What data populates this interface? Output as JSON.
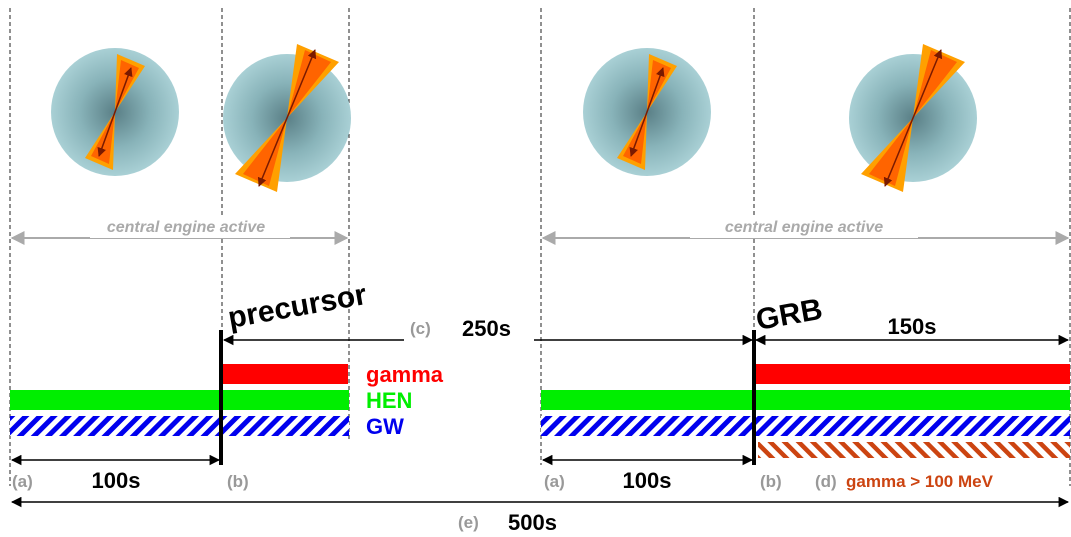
{
  "labels": {
    "engine_active_1": "central engine active",
    "engine_active_2": "central engine active",
    "precursor": "precursor",
    "grb": "GRB",
    "c_letter": "(c)",
    "c_duration": "250s",
    "grb_duration": "150s",
    "a1_letter": "(a)",
    "a1_duration": "100s",
    "b1_letter": "(b)",
    "a2_letter": "(a)",
    "a2_duration": "100s",
    "b2_letter": "(b)",
    "d_letter": "(d)",
    "d_text": "gamma > 100 MeV",
    "e_letter": "(e)",
    "e_duration": "500s"
  },
  "legend": {
    "gamma": "gamma",
    "hen": "HEN",
    "gw": "GW"
  },
  "colors": {
    "gamma": "#ff0000",
    "hen": "#00ee00",
    "gw": "#0000ee",
    "gamma_high": "#cc4411",
    "letter_gray": "#999999",
    "arrow_gray": "#aaaaaa",
    "engine_text": "#aaaaaa",
    "sphere": "#9cc6cc",
    "jet_outer": "#ffb000",
    "jet_inner": "#ff6a00"
  }
}
